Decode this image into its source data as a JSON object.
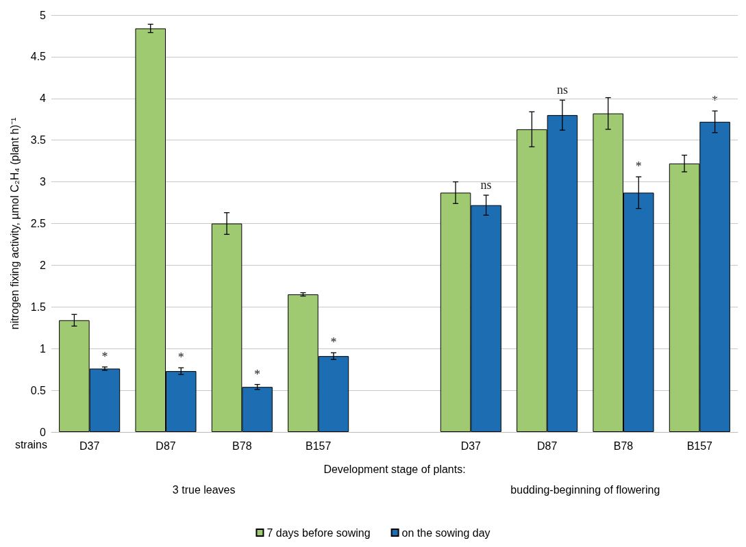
{
  "chart_data": {
    "type": "bar",
    "xlabel": "Development stage of plants:",
    "ylabel": "nitrogen fixing activity, µmol C₂H₄ (plant h)⁻¹",
    "categories": [
      "D37",
      "D87",
      "B78",
      "B157",
      null,
      "D37",
      "D87",
      "B78",
      "B157"
    ],
    "series": [
      {
        "name": "7 days before sowing",
        "color": "#9fca72",
        "values": [
          1.34,
          4.84,
          2.5,
          1.65,
          null,
          2.87,
          3.63,
          3.82,
          3.22
        ],
        "errors": [
          0.07,
          0.05,
          0.13,
          0.02,
          null,
          0.13,
          0.21,
          0.19,
          0.1
        ]
      },
      {
        "name": "on the sowing day",
        "color": "#1c6db2",
        "values": [
          0.76,
          0.73,
          0.54,
          0.91,
          null,
          2.72,
          3.8,
          2.87,
          3.72
        ],
        "errors": [
          0.02,
          0.04,
          0.03,
          0.04,
          null,
          0.12,
          0.18,
          0.19,
          0.13
        ]
      }
    ],
    "ylim": [
      0,
      5
    ],
    "yticks": [
      0,
      0.5,
      1,
      1.5,
      2,
      2.5,
      3,
      3.5,
      4,
      4.5,
      5
    ],
    "grid": "y",
    "legend": "bottom",
    "annotations": [
      "strains",
      "3 true leaves",
      "budding-beginning of flowering",
      "*",
      "*",
      "*",
      "*",
      "ns",
      "ns",
      "*",
      "*"
    ]
  }
}
